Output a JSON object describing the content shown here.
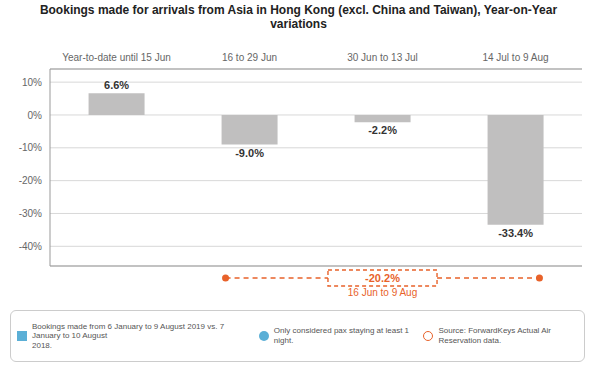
{
  "chart_data": {
    "type": "bar",
    "title": "Bookings made for arrivals from Asia in Hong Kong (excl. China and Taiwan), Year-on-Year variations",
    "categories": [
      "Year-to-date until 15 Jun",
      "16 to 29 Jun",
      "30 Jun to 13 Jul",
      "14 Jul to 9 Aug"
    ],
    "values": [
      6.6,
      -9.0,
      -2.2,
      -33.4
    ],
    "value_labels": [
      "6.6%",
      "-9.0%",
      "-2.2%",
      "-33.4%"
    ],
    "data_labels": true,
    "color": "#c0bfbf",
    "ylim": [
      -46,
      14
    ],
    "yticks": [
      {
        "value": 10,
        "label": "10%"
      },
      {
        "value": 0,
        "label": "0%"
      },
      {
        "value": -10,
        "label": "-10%"
      },
      {
        "value": -20,
        "label": "-20%"
      },
      {
        "value": -30,
        "label": "-30%"
      },
      {
        "value": -40,
        "label": "-40%"
      }
    ],
    "grid": true,
    "annotations": [
      {
        "text": "-20.2%",
        "subtext": "16 Jun to 9 Aug",
        "color": "#e8622a"
      }
    ],
    "footnotes": [
      "Bookings made from 6 January to 9 August 2019 vs. 7 January to 10 August\n2018.",
      "Only considered pax staying at least 1 night.",
      "Source: ForwardKeys Actual Air Reservation data."
    ]
  }
}
